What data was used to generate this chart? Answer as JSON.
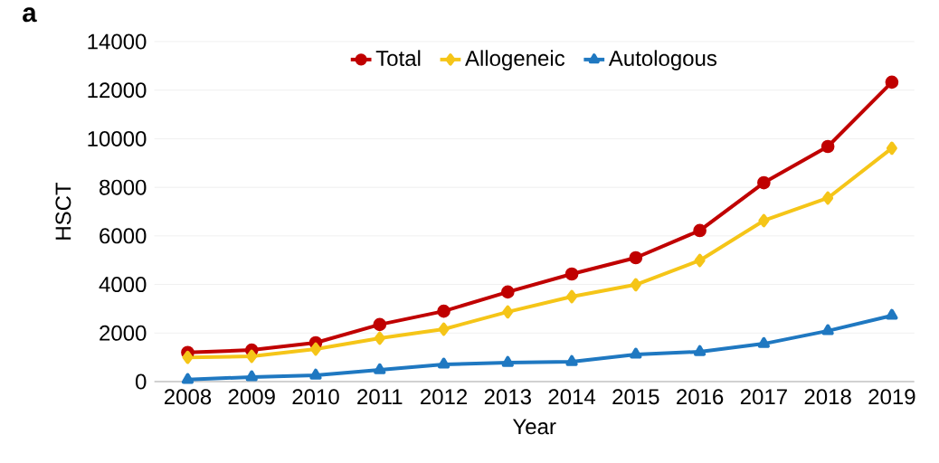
{
  "chart_data": {
    "type": "line",
    "xlabel": "Year",
    "ylabel": "HSCT",
    "annotations": [
      "a"
    ],
    "categories": [
      "2008",
      "2009",
      "2010",
      "2011",
      "2012",
      "2013",
      "2014",
      "2015",
      "2016",
      "2017",
      "2018",
      "2019"
    ],
    "series": [
      {
        "name": "Total",
        "color": "#c00000",
        "marker": "circle",
        "values": [
          1200,
          1300,
          1600,
          2350,
          2900,
          3690,
          4430,
          5100,
          6220,
          8190,
          9680,
          12330
        ]
      },
      {
        "name": "Allogeneic",
        "color": "#f5c518",
        "marker": "diamond",
        "values": [
          1000,
          1040,
          1340,
          1790,
          2160,
          2870,
          3500,
          3990,
          4990,
          6630,
          7560,
          9610
        ]
      },
      {
        "name": "Autologous",
        "color": "#1f78c1",
        "marker": "triangle",
        "values": [
          80,
          190,
          260,
          480,
          710,
          780,
          820,
          1120,
          1230,
          1560,
          2090,
          2720
        ]
      }
    ],
    "ylim": [
      0,
      14000
    ],
    "yticks": [
      0,
      2000,
      4000,
      6000,
      8000,
      10000,
      12000,
      14000
    ],
    "grid": "y",
    "legend": "top",
    "line_style": "solid"
  }
}
